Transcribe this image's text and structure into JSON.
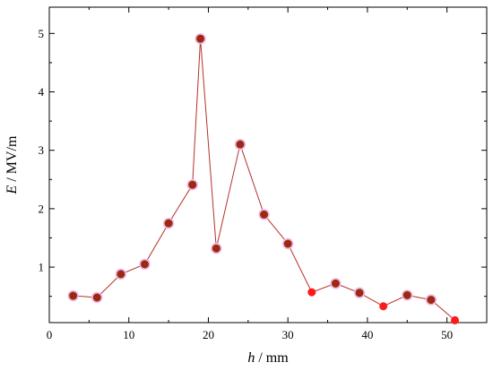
{
  "chart_data": {
    "type": "line",
    "xlabel": {
      "var": "h",
      "unit": " / mm"
    },
    "ylabel": {
      "var": "E",
      "unit": " / MV/m"
    },
    "xlim": [
      0,
      55
    ],
    "ylim": [
      0.05,
      5.45
    ],
    "x_ticks": [
      0,
      10,
      20,
      30,
      40,
      50
    ],
    "y_ticks": [
      1,
      2,
      3,
      4,
      5
    ],
    "grid": false,
    "legend": "none",
    "colors": {
      "line": "#b5312a",
      "marker_fill": "#9b2a10",
      "marker_halo": "#f0b8e8",
      "marker_highlight": "#ff1a1a"
    },
    "series": [
      {
        "x": [
          3,
          6,
          9,
          12,
          15,
          18,
          19,
          21,
          24,
          27,
          30,
          33,
          36,
          39,
          42,
          45,
          48,
          51
        ],
        "y": [
          0.51,
          0.48,
          0.88,
          1.05,
          1.75,
          2.41,
          4.91,
          1.32,
          3.1,
          1.9,
          1.4,
          0.57,
          0.72,
          0.56,
          0.33,
          0.52,
          0.44,
          0.09
        ],
        "highlight": [
          false,
          false,
          false,
          false,
          false,
          false,
          false,
          false,
          false,
          false,
          false,
          true,
          false,
          false,
          true,
          false,
          false,
          true
        ]
      }
    ]
  }
}
